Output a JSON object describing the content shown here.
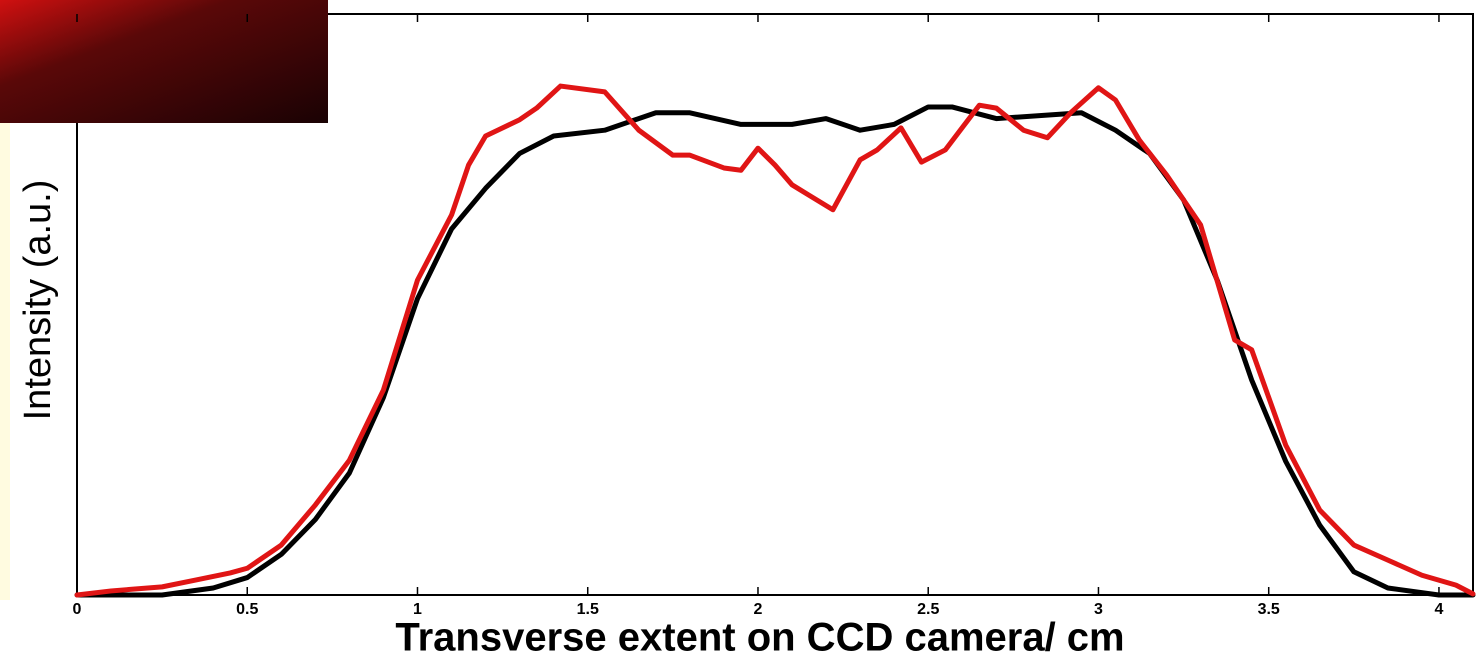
{
  "chart_data": {
    "type": "line",
    "xlabel": "Transverse extent on CCD camera/ cm",
    "ylabel": "Intensity (a.u.)",
    "xlim": [
      0,
      4.1
    ],
    "ylim": [
      0,
      1
    ],
    "xticks": [
      0,
      0.5,
      1,
      1.5,
      2,
      2.5,
      3,
      3.5,
      4
    ],
    "series": [
      {
        "color": "#000000",
        "x": [
          0,
          0.25,
          0.4,
          0.5,
          0.6,
          0.7,
          0.8,
          0.9,
          1.0,
          1.1,
          1.2,
          1.3,
          1.4,
          1.55,
          1.7,
          1.8,
          1.95,
          2.1,
          2.2,
          2.3,
          2.4,
          2.5,
          2.57,
          2.7,
          2.95,
          3.05,
          3.15,
          3.25,
          3.35,
          3.45,
          3.55,
          3.65,
          3.75,
          3.85,
          4.0,
          4.1
        ],
        "values": [
          0,
          0,
          0.012,
          0.03,
          0.07,
          0.13,
          0.21,
          0.34,
          0.51,
          0.63,
          0.7,
          0.76,
          0.79,
          0.8,
          0.83,
          0.83,
          0.81,
          0.81,
          0.82,
          0.8,
          0.81,
          0.84,
          0.84,
          0.82,
          0.83,
          0.8,
          0.76,
          0.68,
          0.54,
          0.37,
          0.23,
          0.12,
          0.04,
          0.012,
          0,
          0
        ]
      },
      {
        "color": "#e01515",
        "x": [
          0,
          0.1,
          0.25,
          0.35,
          0.45,
          0.5,
          0.6,
          0.7,
          0.8,
          0.9,
          1.0,
          1.1,
          1.15,
          1.2,
          1.3,
          1.35,
          1.42,
          1.55,
          1.65,
          1.75,
          1.8,
          1.9,
          1.95,
          2.0,
          2.05,
          2.1,
          2.15,
          2.22,
          2.3,
          2.35,
          2.42,
          2.48,
          2.55,
          2.65,
          2.7,
          2.78,
          2.85,
          2.92,
          3.0,
          3.05,
          3.12,
          3.2,
          3.3,
          3.4,
          3.45,
          3.55,
          3.65,
          3.75,
          3.85,
          3.95,
          4.05,
          4.1
        ],
        "values": [
          0,
          0.007,
          0.014,
          0.026,
          0.038,
          0.046,
          0.086,
          0.155,
          0.232,
          0.353,
          0.542,
          0.654,
          0.74,
          0.79,
          0.818,
          0.838,
          0.876,
          0.866,
          0.8,
          0.757,
          0.757,
          0.735,
          0.731,
          0.769,
          0.74,
          0.706,
          0.688,
          0.663,
          0.749,
          0.766,
          0.804,
          0.745,
          0.766,
          0.843,
          0.838,
          0.8,
          0.787,
          0.831,
          0.873,
          0.852,
          0.783,
          0.723,
          0.637,
          0.439,
          0.422,
          0.258,
          0.146,
          0.086,
          0.06,
          0.034,
          0.017,
          0.002
        ]
      }
    ]
  }
}
